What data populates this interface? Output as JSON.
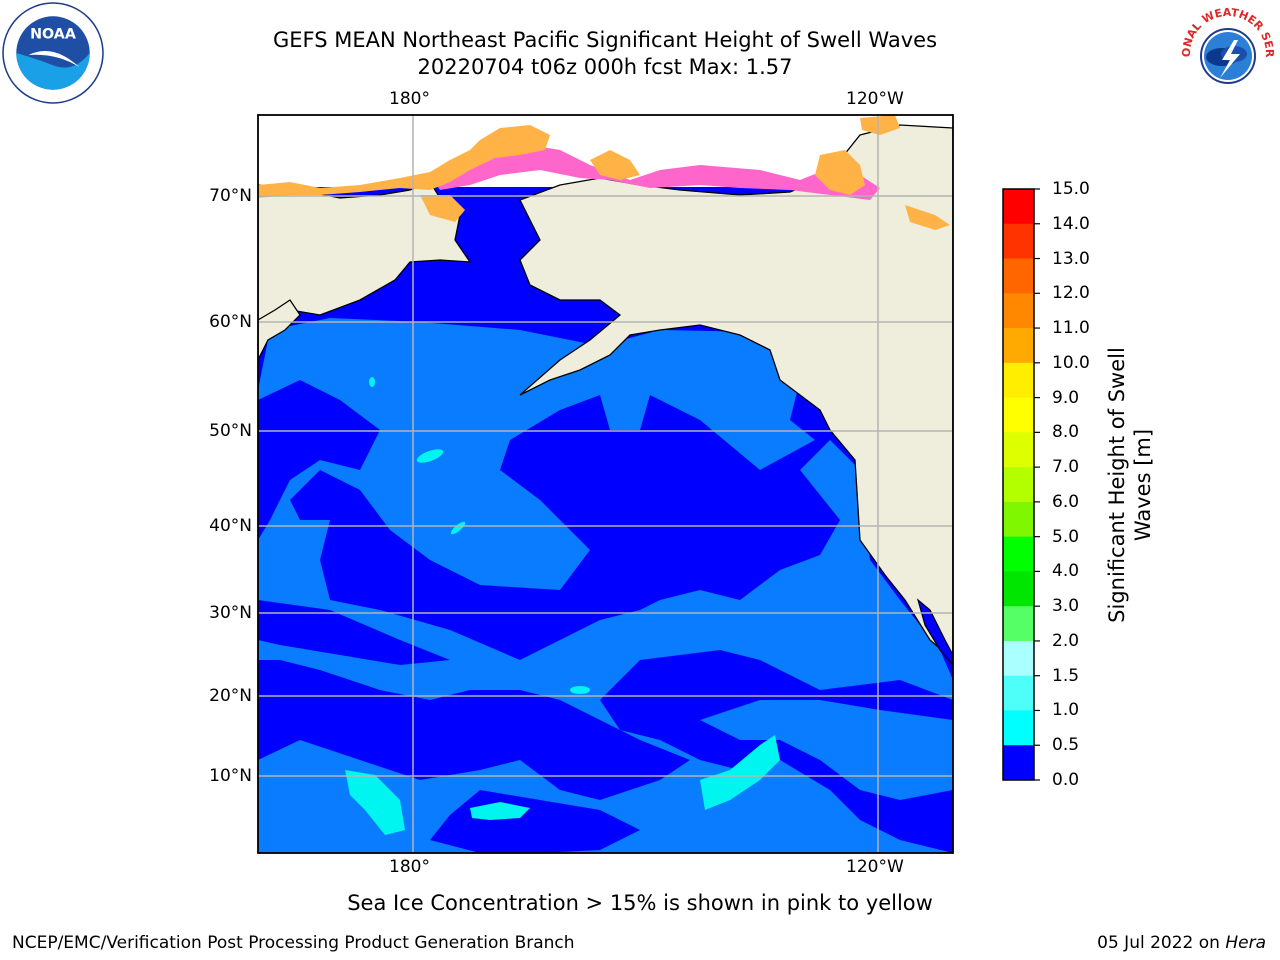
{
  "header": {
    "title_line1": "GEFS MEAN Northeast Pacific Significant Height of Swell Waves",
    "title_line2": "20220704 t06z 000h fcst   Max: 1.57"
  },
  "logos": {
    "left": "noaa-logo",
    "left_text": "NOAA",
    "right": "nws-logo",
    "right_text": "NATIONAL WEATHER SERVICE"
  },
  "map": {
    "lon_ticks": [
      "180°",
      "120°W"
    ],
    "lat_ticks": [
      "70°N",
      "60°N",
      "50°N",
      "40°N",
      "30°N",
      "20°N",
      "10°N"
    ],
    "colors": {
      "land": "#efeedd",
      "ocean_dark": "#0000ff",
      "ocean_mid": "#0a7cff",
      "ocean_cyan": "#00f5f0",
      "ice_pink": "#ff66cc",
      "ice_orange": "#ffb347",
      "grid": "#b4b4b4"
    }
  },
  "colorbar": {
    "title": "Significant Height of Swell Waves [m]",
    "labels": [
      "15.0",
      "14.0",
      "13.0",
      "12.0",
      "11.0",
      "10.0",
      "9.0",
      "8.0",
      "7.0",
      "6.0",
      "5.0",
      "4.0",
      "3.0",
      "2.0",
      "1.5",
      "1.0",
      "0.5",
      "0.0"
    ],
    "colors": [
      "#ff0000",
      "#ff3300",
      "#ff6600",
      "#ff8800",
      "#ffaa00",
      "#ffee00",
      "#ffff00",
      "#ddff00",
      "#b3ff00",
      "#7ff700",
      "#00ff00",
      "#00e600",
      "#55ff66",
      "#aaffff",
      "#4dfff8",
      "#00ffff",
      "#0088ff",
      "#0000ff"
    ]
  },
  "notes": {
    "ice_note": "Sea Ice Concentration > 15% is shown in pink to yellow",
    "footer_left": "NCEP/EMC/Verification Post Processing Product Generation Branch",
    "footer_date": "05 Jul 2022 on ",
    "footer_host": "Hera"
  }
}
